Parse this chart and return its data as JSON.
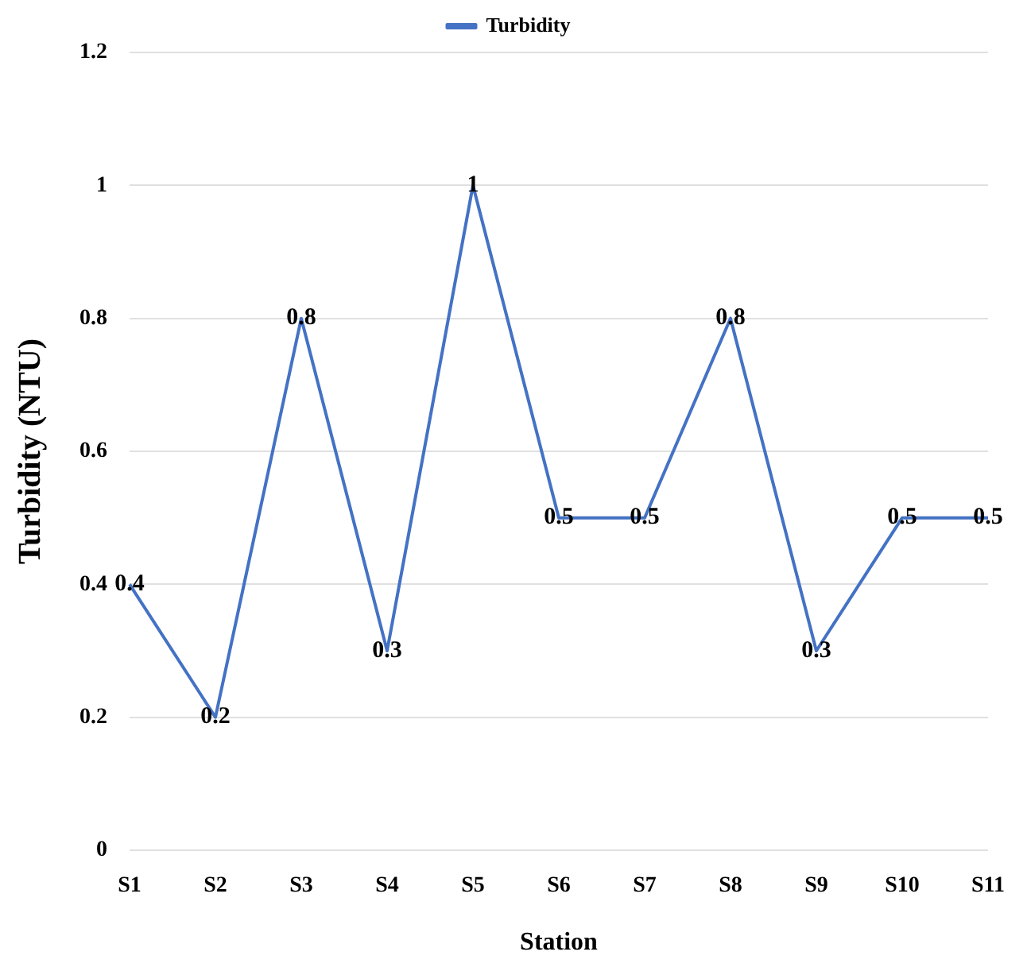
{
  "chart_data": {
    "type": "line",
    "xlabel": "Station",
    "ylabel": "Turbidity (NTU)",
    "categories": [
      "S1",
      "S2",
      "S3",
      "S4",
      "S5",
      "S6",
      "S7",
      "S8",
      "S9",
      "S10",
      "S11"
    ],
    "series": [
      {
        "name": "Turbidity",
        "color": "#4472c4",
        "values": [
          0.4,
          0.2,
          0.8,
          0.3,
          1,
          0.5,
          0.5,
          0.8,
          0.3,
          0.5,
          0.5
        ]
      }
    ],
    "ylim": [
      0,
      1.2
    ],
    "yticks": [
      0,
      0.2,
      0.4,
      0.6,
      0.8,
      1,
      1.2
    ],
    "grid": "y",
    "legend": "top",
    "marker": "none",
    "data_labels": true
  }
}
